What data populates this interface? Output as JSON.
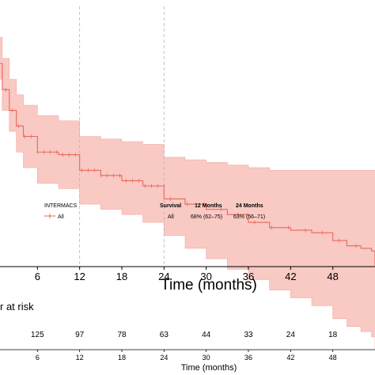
{
  "chart_data": {
    "type": "line",
    "title": "",
    "xlabel": "Time (months)",
    "ylabel": "",
    "xlim": [
      0,
      54
    ],
    "x_ticks": [
      6,
      12,
      18,
      24,
      30,
      36,
      42,
      48
    ],
    "ylim": [
      0.5,
      1.0
    ],
    "reference_lines_x": [
      12,
      24
    ],
    "colors": {
      "curve": "#e8685e",
      "band": "#f9c9c3"
    },
    "series": [
      {
        "name": "All",
        "x": [
          0,
          0.5,
          1,
          2,
          3,
          4,
          6,
          9,
          12,
          15,
          18,
          21,
          24,
          27,
          30,
          33,
          36,
          39,
          42,
          45,
          48,
          50,
          52,
          53.5,
          54
        ],
        "y": [
          0.95,
          0.89,
          0.84,
          0.8,
          0.77,
          0.75,
          0.72,
          0.715,
          0.685,
          0.675,
          0.665,
          0.655,
          0.63,
          0.62,
          0.61,
          0.6,
          0.585,
          0.575,
          0.57,
          0.565,
          0.55,
          0.54,
          0.535,
          0.53,
          0.5
        ],
        "lower": [
          0.92,
          0.86,
          0.8,
          0.76,
          0.72,
          0.69,
          0.66,
          0.65,
          0.62,
          0.61,
          0.6,
          0.585,
          0.56,
          0.535,
          0.515,
          0.495,
          0.475,
          0.455,
          0.44,
          0.425,
          0.4,
          0.385,
          0.375,
          0.365,
          0.34
        ],
        "upper": [
          0.99,
          0.94,
          0.9,
          0.86,
          0.83,
          0.81,
          0.79,
          0.78,
          0.75,
          0.745,
          0.74,
          0.735,
          0.71,
          0.705,
          0.7,
          0.695,
          0.69,
          0.685,
          0.685,
          0.685,
          0.685,
          0.685,
          0.685,
          0.685,
          0.685
        ]
      }
    ],
    "legend": {
      "title": "INTERMACS",
      "entry": "All",
      "table_headers": [
        "Survival",
        "12 Months",
        "24 Months"
      ],
      "table_row": [
        "All",
        "68% (62–75)",
        "63% (56–71)"
      ]
    },
    "risk_table": {
      "title": "r at risk",
      "times": [
        6,
        12,
        18,
        24,
        30,
        36,
        42,
        48
      ],
      "counts": [
        "125",
        "97",
        "78",
        "63",
        "44",
        "33",
        "24",
        "18"
      ],
      "xlabel": "Time (months)"
    }
  }
}
